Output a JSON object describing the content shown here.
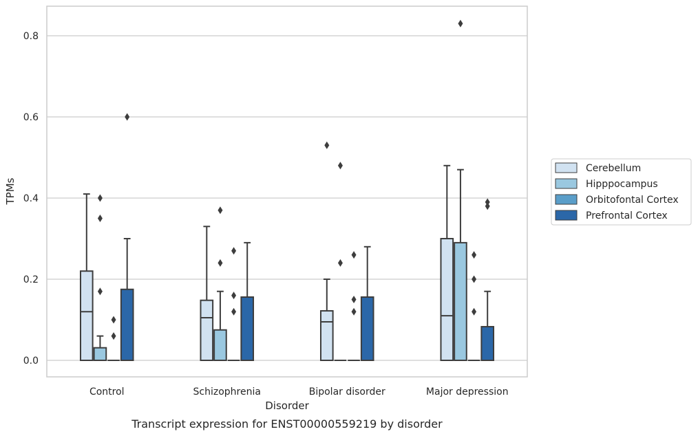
{
  "chart_data": {
    "type": "box",
    "caption": "Transcript expression for ENST00000559219 by disorder",
    "xlabel": "Disorder",
    "ylabel": "TPMs",
    "ylim": [
      -0.04,
      0.875
    ],
    "yticks": [
      0.0,
      0.2,
      0.4,
      0.6,
      0.8
    ],
    "ytick_labels": [
      "0.0",
      "0.2",
      "0.4",
      "0.6",
      "0.8"
    ],
    "categories": [
      "Control",
      "Schizophrenia",
      "Bipolar disorder",
      "Major depression"
    ],
    "grid": true,
    "legend_position": "right",
    "series": [
      {
        "name": "Cerebellum",
        "color": "#d1e2f1",
        "boxes": [
          {
            "q1": 0.0,
            "median": 0.12,
            "q3": 0.22,
            "whisker_low": 0.0,
            "whisker_high": 0.41,
            "outliers": []
          },
          {
            "q1": 0.0,
            "median": 0.105,
            "q3": 0.148,
            "whisker_low": 0.0,
            "whisker_high": 0.33,
            "outliers": []
          },
          {
            "q1": 0.0,
            "median": 0.095,
            "q3": 0.122,
            "whisker_low": 0.0,
            "whisker_high": 0.2,
            "outliers": [
              0.53
            ]
          },
          {
            "q1": 0.0,
            "median": 0.11,
            "q3": 0.3,
            "whisker_low": 0.0,
            "whisker_high": 0.48,
            "outliers": []
          }
        ]
      },
      {
        "name": "Hipppocampus",
        "color": "#9ac8e0",
        "boxes": [
          {
            "q1": 0.0,
            "median": 0.0,
            "q3": 0.031,
            "whisker_low": 0.0,
            "whisker_high": 0.06,
            "outliers": [
              0.17,
              0.35,
              0.4
            ]
          },
          {
            "q1": 0.0,
            "median": 0.0,
            "q3": 0.075,
            "whisker_low": 0.0,
            "whisker_high": 0.17,
            "outliers": [
              0.24,
              0.37
            ]
          },
          {
            "q1": 0.0,
            "median": 0.0,
            "q3": 0.0,
            "whisker_low": 0.0,
            "whisker_high": 0.0,
            "outliers": [
              0.24,
              0.48
            ]
          },
          {
            "q1": 0.0,
            "median": 0.0,
            "q3": 0.29,
            "whisker_low": 0.0,
            "whisker_high": 0.47,
            "outliers": [
              0.83
            ]
          }
        ]
      },
      {
        "name": "Orbitofontal Cortex",
        "color": "#5a9ec9",
        "boxes": [
          {
            "q1": 0.0,
            "median": 0.0,
            "q3": 0.0,
            "whisker_low": 0.0,
            "whisker_high": 0.0,
            "outliers": [
              0.06,
              0.1
            ]
          },
          {
            "q1": 0.0,
            "median": 0.0,
            "q3": 0.0,
            "whisker_low": 0.0,
            "whisker_high": 0.0,
            "outliers": [
              0.12,
              0.16,
              0.27
            ]
          },
          {
            "q1": 0.0,
            "median": 0.0,
            "q3": 0.0,
            "whisker_low": 0.0,
            "whisker_high": 0.0,
            "outliers": [
              0.12,
              0.15,
              0.26
            ]
          },
          {
            "q1": 0.0,
            "median": 0.0,
            "q3": 0.0,
            "whisker_low": 0.0,
            "whisker_high": 0.0,
            "outliers": [
              0.12,
              0.2,
              0.26
            ]
          }
        ]
      },
      {
        "name": "Prefrontal Cortex",
        "color": "#2b67a8",
        "boxes": [
          {
            "q1": 0.0,
            "median": 0.0,
            "q3": 0.175,
            "whisker_low": 0.0,
            "whisker_high": 0.3,
            "outliers": [
              0.6
            ]
          },
          {
            "q1": 0.0,
            "median": 0.0,
            "q3": 0.156,
            "whisker_low": 0.0,
            "whisker_high": 0.29,
            "outliers": []
          },
          {
            "q1": 0.0,
            "median": 0.0,
            "q3": 0.156,
            "whisker_low": 0.0,
            "whisker_high": 0.28,
            "outliers": []
          },
          {
            "q1": 0.0,
            "median": 0.0,
            "q3": 0.083,
            "whisker_low": 0.0,
            "whisker_high": 0.17,
            "outliers": [
              0.38,
              0.39
            ]
          }
        ]
      }
    ]
  }
}
